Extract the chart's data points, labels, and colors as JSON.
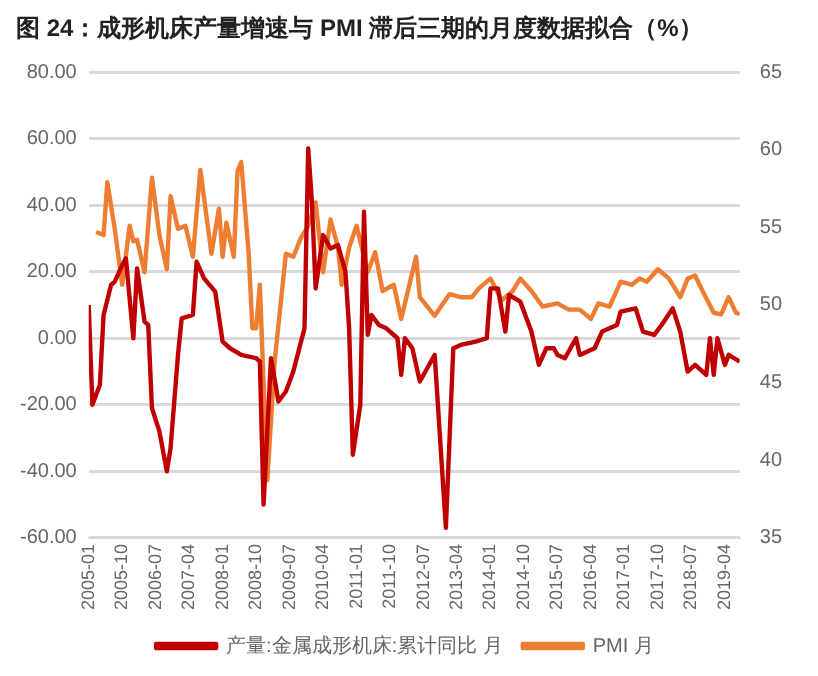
{
  "chart_data": {
    "type": "line",
    "title": "图 24：成形机床产量增速与 PMI 滞后三期的月度数据拟合（%）",
    "xlim": [
      "2005-01",
      "2019-08"
    ],
    "xticks": [
      "2005-01",
      "2005-10",
      "2006-07",
      "2007-04",
      "2008-01",
      "2008-10",
      "2009-07",
      "2010-04",
      "2011-01",
      "2011-10",
      "2012-07",
      "2013-04",
      "2014-01",
      "2014-10",
      "2015-07",
      "2016-04",
      "2017-01",
      "2017-10",
      "2018-07",
      "2019-04"
    ],
    "ylim": [
      -60,
      80
    ],
    "yticks": [
      {
        "value": -60,
        "label": "-60.00"
      },
      {
        "value": -40,
        "label": "-40.00"
      },
      {
        "value": -20,
        "label": "-20.00"
      },
      {
        "value": 0,
        "label": "0.00"
      },
      {
        "value": 20,
        "label": "20.00"
      },
      {
        "value": 40,
        "label": "40.00"
      },
      {
        "value": 60,
        "label": "60.00"
      },
      {
        "value": 80,
        "label": "80.00"
      }
    ],
    "y2lim": [
      35,
      65
    ],
    "y2ticks": [
      35,
      40,
      45,
      50,
      55,
      60,
      65
    ],
    "grid": "y",
    "legend": "bottom",
    "marker": "none",
    "series": [
      {
        "name": "产量:金属成形机床:累计同比 月",
        "color": "#c00000",
        "x": [
          "2005-01",
          "2005-02",
          "2005-04",
          "2005-05",
          "2005-07",
          "2005-08",
          "2005-10",
          "2005-11",
          "2006-01",
          "2006-02",
          "2006-04",
          "2006-05",
          "2006-06",
          "2006-08",
          "2006-10",
          "2006-11",
          "2007-01",
          "2007-02",
          "2007-05",
          "2007-06",
          "2007-08",
          "2007-11",
          "2008-01",
          "2008-03",
          "2008-06",
          "2008-10",
          "2008-11",
          "2008-12",
          "2009-02",
          "2009-04",
          "2009-06",
          "2009-08",
          "2009-11",
          "2009-12",
          "2010-01",
          "2010-02",
          "2010-04",
          "2010-06",
          "2010-08",
          "2010-10",
          "2010-11",
          "2010-12",
          "2011-02",
          "2011-03",
          "2011-04",
          "2011-05",
          "2011-07",
          "2011-09",
          "2011-12",
          "2012-01",
          "2012-02",
          "2012-04",
          "2012-06",
          "2012-08",
          "2012-10",
          "2013-01",
          "2013-03",
          "2013-05",
          "2013-09",
          "2013-12",
          "2014-01",
          "2014-03",
          "2014-05",
          "2014-06",
          "2014-09",
          "2014-12",
          "2015-02",
          "2015-04",
          "2015-06",
          "2015-07",
          "2015-09",
          "2015-12",
          "2016-01",
          "2016-05",
          "2016-07",
          "2016-11",
          "2016-12",
          "2017-04",
          "2017-06",
          "2017-09",
          "2017-11",
          "2018-02",
          "2018-04",
          "2018-06",
          "2018-08",
          "2018-11",
          "2018-12",
          "2019-01",
          "2019-02",
          "2019-04",
          "2019-05",
          "2019-08"
        ],
        "values": [
          10,
          -20,
          -14,
          7,
          16,
          17,
          22,
          24,
          0,
          21,
          5,
          4,
          -21,
          -28,
          -40,
          -33,
          -5,
          6,
          7,
          23,
          18,
          14,
          -1,
          -3,
          -5,
          -6,
          -7,
          -50,
          -6,
          -19,
          -16,
          -10,
          3,
          57,
          41,
          15,
          31,
          27,
          28,
          20,
          3,
          -35,
          -20,
          38,
          1,
          7,
          4,
          3,
          0,
          -11,
          0,
          -3,
          -13,
          -9,
          -5,
          -57,
          -3,
          -2,
          -1,
          0,
          15,
          15,
          2,
          13,
          11,
          2,
          -8,
          -3,
          -3,
          -5,
          -6,
          0,
          -5,
          -3,
          2,
          4,
          8,
          9,
          2,
          1,
          4,
          9,
          2,
          -10,
          -8,
          -11,
          0,
          -11,
          0,
          -8,
          -5,
          -7
        ]
      },
      {
        "name": "PMI 月",
        "color": "#ed7d31",
        "axis": "y2",
        "x": [
          "2005-03",
          "2005-05",
          "2005-06",
          "2005-08",
          "2005-10",
          "2005-12",
          "2006-01",
          "2006-02",
          "2006-04",
          "2006-06",
          "2006-08",
          "2006-10",
          "2006-11",
          "2007-01",
          "2007-03",
          "2007-05",
          "2007-07",
          "2007-09",
          "2007-10",
          "2007-12",
          "2008-01",
          "2008-02",
          "2008-04",
          "2008-05",
          "2008-06",
          "2008-08",
          "2008-09",
          "2008-10",
          "2008-11",
          "2009-01",
          "2009-03",
          "2009-06",
          "2009-08",
          "2009-10",
          "2009-12",
          "2010-02",
          "2010-04",
          "2010-06",
          "2010-08",
          "2010-09",
          "2010-11",
          "2011-01",
          "2011-04",
          "2011-06",
          "2011-08",
          "2011-11",
          "2012-01",
          "2012-05",
          "2012-06",
          "2012-10",
          "2013-02",
          "2013-05",
          "2013-08",
          "2013-10",
          "2014-01",
          "2014-04",
          "2014-07",
          "2014-09",
          "2014-12",
          "2015-03",
          "2015-07",
          "2015-10",
          "2016-01",
          "2016-04",
          "2016-06",
          "2016-09",
          "2016-12",
          "2017-03",
          "2017-05",
          "2017-07",
          "2017-10",
          "2018-01",
          "2018-04",
          "2018-06",
          "2018-08",
          "2018-10",
          "2019-01",
          "2019-03",
          "2019-05",
          "2019-07",
          "2019-08"
        ],
        "values": [
          54.7,
          54.5,
          57.9,
          54.9,
          51.3,
          55.1,
          54.1,
          54.2,
          52.1,
          58.2,
          54.5,
          52.3,
          57.0,
          54.9,
          55.1,
          53.1,
          58.7,
          55.1,
          53.3,
          56.2,
          53.1,
          55.3,
          53.1,
          58.6,
          59.2,
          53.3,
          48.5,
          48.5,
          51.3,
          38.7,
          46.4,
          53.3,
          53.1,
          54.3,
          55.1,
          56.6,
          52.1,
          55.5,
          53.7,
          51.3,
          53.7,
          55.1,
          52.1,
          53.4,
          50.9,
          51.3,
          49.1,
          53.1,
          50.5,
          49.3,
          50.7,
          50.5,
          50.5,
          51.1,
          51.7,
          50.3,
          50.9,
          51.7,
          50.9,
          49.9,
          50.1,
          49.7,
          49.7,
          49.1,
          50.1,
          49.9,
          51.5,
          51.3,
          51.7,
          51.5,
          52.3,
          51.7,
          50.5,
          51.7,
          51.9,
          50.9,
          49.5,
          49.4,
          50.5,
          49.5,
          49.4
        ]
      }
    ]
  }
}
